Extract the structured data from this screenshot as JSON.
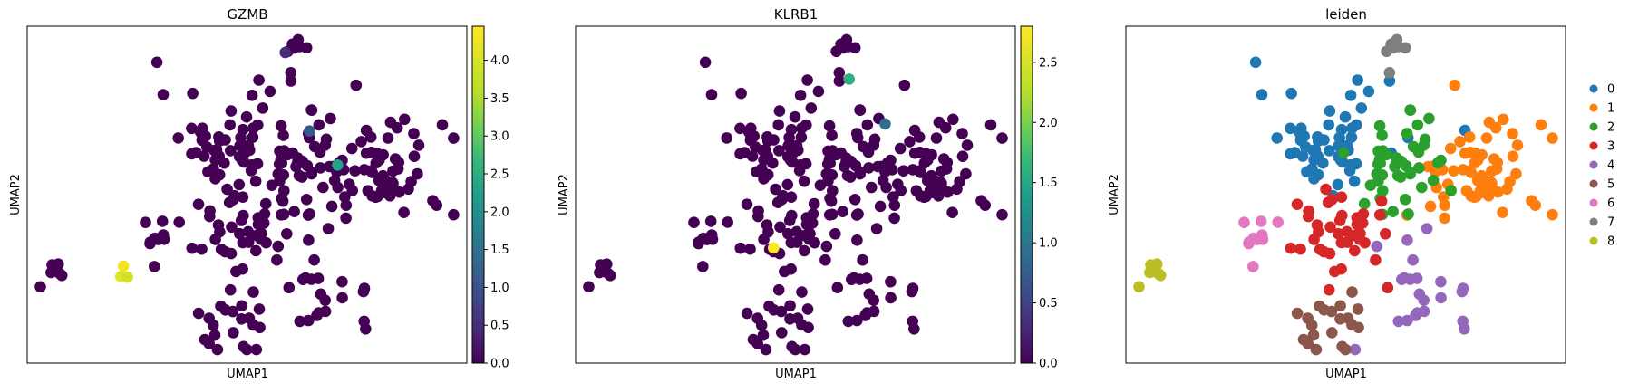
{
  "chart_data": [
    {
      "type": "scatter",
      "title": "GZMB",
      "xlabel": "UMAP1",
      "ylabel": "UMAP2",
      "colorbar": {
        "colormap": "viridis",
        "range": [
          0,
          4.45
        ],
        "ticks": [
          0.0,
          0.5,
          1.0,
          1.5,
          2.0,
          2.5,
          3.0,
          3.5,
          4.0
        ],
        "tick_labels": [
          "0.0",
          "0.5",
          "1.0",
          "1.5",
          "2.0",
          "2.5",
          "3.0",
          "3.5",
          "4.0"
        ]
      },
      "highlights": [
        {
          "x": 0.219,
          "y": 0.288,
          "value": 4.3
        },
        {
          "x": 0.213,
          "y": 0.257,
          "value": 4.1
        },
        {
          "x": 0.228,
          "y": 0.255,
          "value": 3.9
        },
        {
          "x": 0.706,
          "y": 0.588,
          "value": 2.3
        },
        {
          "x": 0.642,
          "y": 0.689,
          "value": 1.1
        },
        {
          "x": 0.587,
          "y": 0.922,
          "value": 0.5
        }
      ]
    },
    {
      "type": "scatter",
      "title": "KLRB1",
      "xlabel": "UMAP1",
      "ylabel": "UMAP2",
      "colorbar": {
        "colormap": "viridis",
        "range": [
          0,
          2.8
        ],
        "ticks": [
          0.0,
          0.5,
          1.0,
          1.5,
          2.0,
          2.5
        ],
        "tick_labels": [
          "0.0",
          "0.5",
          "1.0",
          "1.5",
          "2.0",
          "2.5"
        ]
      },
      "highlights": [
        {
          "x": 0.45,
          "y": 0.342,
          "value": 2.8
        },
        {
          "x": 0.622,
          "y": 0.843,
          "value": 1.6
        },
        {
          "x": 0.704,
          "y": 0.71,
          "value": 0.9
        }
      ]
    },
    {
      "type": "scatter",
      "title": "leiden",
      "xlabel": "UMAP1",
      "ylabel": "UMAP2",
      "legend_position": "right",
      "categories": [
        "0",
        "1",
        "2",
        "3",
        "4",
        "5",
        "6",
        "7",
        "8"
      ]
    }
  ],
  "colors": {
    "viridis_low": "#440154",
    "viridis_high": "#fde725",
    "categories": [
      "#1f77b4",
      "#ff7f0e",
      "#2ca02c",
      "#d62728",
      "#9467bd",
      "#8c564b",
      "#e377c2",
      "#7f7f7f",
      "#bcbd22"
    ]
  }
}
